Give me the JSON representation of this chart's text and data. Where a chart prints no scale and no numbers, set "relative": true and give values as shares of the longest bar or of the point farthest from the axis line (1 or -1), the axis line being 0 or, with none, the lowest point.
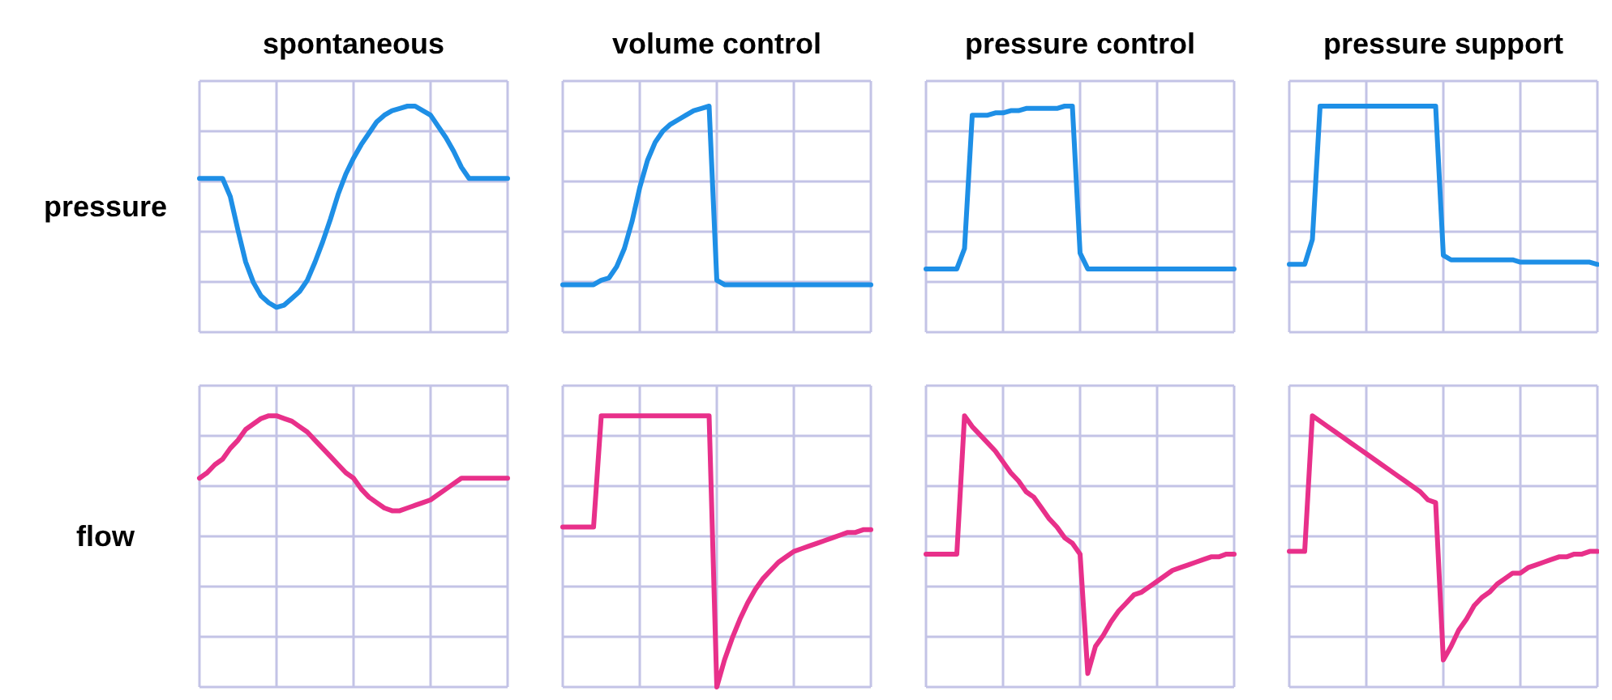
{
  "chart_data": [
    {
      "type": "line",
      "title": "spontaneous",
      "relative": true,
      "grid": true,
      "ylabel": "pressure",
      "categories": [
        null,
        null,
        null,
        null,
        null,
        null,
        null,
        null,
        null,
        null,
        null,
        null,
        null,
        null,
        null,
        null,
        null,
        null,
        null,
        null,
        null,
        null,
        null,
        null,
        null,
        null,
        null,
        null,
        null,
        null,
        null,
        null,
        null,
        null,
        null,
        null,
        null,
        null,
        null,
        null,
        null
      ],
      "series": [
        {
          "color": "#1e8fe6",
          "values": [
            0.68,
            0.68,
            0.68,
            0.68,
            0.6,
            0.45,
            0.31,
            0.22,
            0.16,
            0.13,
            0.11,
            0.12,
            0.15,
            0.18,
            0.23,
            0.31,
            0.4,
            0.5,
            0.61,
            0.7,
            0.77,
            0.83,
            0.88,
            0.93,
            0.96,
            0.98,
            0.99,
            1,
            1,
            0.98,
            0.96,
            0.91,
            0.86,
            0.8,
            0.73,
            0.68,
            0.68,
            0.68,
            0.68,
            0.68,
            0.68
          ]
        }
      ]
    },
    {
      "type": "line",
      "title": "volume control",
      "relative": true,
      "grid": true,
      "categories": [
        null,
        null,
        null,
        null,
        null,
        null,
        null,
        null,
        null,
        null,
        null,
        null,
        null,
        null,
        null,
        null,
        null,
        null,
        null,
        null,
        null,
        null,
        null,
        null,
        null,
        null,
        null,
        null,
        null,
        null,
        null,
        null,
        null,
        null,
        null,
        null,
        null,
        null,
        null,
        null,
        null
      ],
      "series": [
        {
          "color": "#1e8fe6",
          "values": [
            0.21,
            0.21,
            0.21,
            0.21,
            0.21,
            0.23,
            0.24,
            0.29,
            0.37,
            0.49,
            0.64,
            0.76,
            0.84,
            0.89,
            0.92,
            0.94,
            0.96,
            0.98,
            0.99,
            1,
            0.23,
            0.21,
            0.21,
            0.21,
            0.21,
            0.21,
            0.21,
            0.21,
            0.21,
            0.21,
            0.21,
            0.21,
            0.21,
            0.21,
            0.21,
            0.21,
            0.21,
            0.21,
            0.21,
            0.21,
            0.21
          ]
        }
      ]
    },
    {
      "type": "line",
      "title": "pressure control",
      "relative": true,
      "grid": true,
      "categories": [
        null,
        null,
        null,
        null,
        null,
        null,
        null,
        null,
        null,
        null,
        null,
        null,
        null,
        null,
        null,
        null,
        null,
        null,
        null,
        null,
        null,
        null,
        null,
        null,
        null,
        null,
        null,
        null,
        null,
        null,
        null,
        null,
        null,
        null,
        null,
        null,
        null,
        null,
        null,
        null,
        null
      ],
      "series": [
        {
          "color": "#1e8fe6",
          "values": [
            0.28,
            0.28,
            0.28,
            0.28,
            0.28,
            0.37,
            0.96,
            0.96,
            0.96,
            0.97,
            0.97,
            0.98,
            0.98,
            0.99,
            0.99,
            0.99,
            0.99,
            0.99,
            1,
            1,
            0.35,
            0.28,
            0.28,
            0.28,
            0.28,
            0.28,
            0.28,
            0.28,
            0.28,
            0.28,
            0.28,
            0.28,
            0.28,
            0.28,
            0.28,
            0.28,
            0.28,
            0.28,
            0.28,
            0.28,
            0.28
          ]
        }
      ]
    },
    {
      "type": "line",
      "title": "pressure support",
      "relative": true,
      "grid": true,
      "categories": [
        null,
        null,
        null,
        null,
        null,
        null,
        null,
        null,
        null,
        null,
        null,
        null,
        null,
        null,
        null,
        null,
        null,
        null,
        null,
        null,
        null,
        null,
        null,
        null,
        null,
        null,
        null,
        null,
        null,
        null,
        null,
        null,
        null,
        null,
        null,
        null,
        null,
        null,
        null,
        null,
        null
      ],
      "series": [
        {
          "color": "#1e8fe6",
          "values": [
            0.3,
            0.3,
            0.3,
            0.41,
            1,
            1,
            1,
            1,
            1,
            1,
            1,
            1,
            1,
            1,
            1,
            1,
            1,
            1,
            1,
            1,
            0.34,
            0.32,
            0.32,
            0.32,
            0.32,
            0.32,
            0.32,
            0.32,
            0.32,
            0.32,
            0.31,
            0.31,
            0.31,
            0.31,
            0.31,
            0.31,
            0.31,
            0.31,
            0.31,
            0.31,
            0.3
          ]
        }
      ]
    },
    {
      "type": "line",
      "relative": true,
      "grid": true,
      "ylabel": "flow",
      "categories": [
        null,
        null,
        null,
        null,
        null,
        null,
        null,
        null,
        null,
        null,
        null,
        null,
        null,
        null,
        null,
        null,
        null,
        null,
        null,
        null,
        null,
        null,
        null,
        null,
        null,
        null,
        null,
        null,
        null,
        null,
        null,
        null,
        null,
        null,
        null,
        null,
        null,
        null,
        null,
        null,
        null
      ],
      "series": [
        {
          "color": "#e8308a",
          "values": [
            0.77,
            0.79,
            0.82,
            0.84,
            0.88,
            0.91,
            0.95,
            0.97,
            0.99,
            1,
            1,
            0.99,
            0.98,
            0.96,
            0.94,
            0.91,
            0.88,
            0.85,
            0.82,
            0.79,
            0.77,
            0.73,
            0.7,
            0.68,
            0.66,
            0.65,
            0.65,
            0.66,
            0.67,
            0.68,
            0.69,
            0.71,
            0.73,
            0.75,
            0.77,
            0.77,
            0.77,
            0.77,
            0.77,
            0.77,
            0.77
          ]
        }
      ]
    },
    {
      "type": "line",
      "relative": true,
      "grid": true,
      "categories": [
        null,
        null,
        null,
        null,
        null,
        null,
        null,
        null,
        null,
        null,
        null,
        null,
        null,
        null,
        null,
        null,
        null,
        null,
        null,
        null,
        null,
        null,
        null,
        null,
        null,
        null,
        null,
        null,
        null,
        null,
        null,
        null,
        null,
        null,
        null,
        null,
        null,
        null,
        null,
        null,
        null
      ],
      "series": [
        {
          "color": "#e8308a",
          "values": [
            0.59,
            0.59,
            0.59,
            0.59,
            0.59,
            1,
            1,
            1,
            1,
            1,
            1,
            1,
            1,
            1,
            1,
            1,
            1,
            1,
            1,
            1,
            0,
            0.1,
            0.18,
            0.25,
            0.31,
            0.36,
            0.4,
            0.43,
            0.46,
            0.48,
            0.5,
            0.51,
            0.52,
            0.53,
            0.54,
            0.55,
            0.56,
            0.57,
            0.57,
            0.58,
            0.58
          ]
        }
      ]
    },
    {
      "type": "line",
      "relative": true,
      "grid": true,
      "categories": [
        null,
        null,
        null,
        null,
        null,
        null,
        null,
        null,
        null,
        null,
        null,
        null,
        null,
        null,
        null,
        null,
        null,
        null,
        null,
        null,
        null,
        null,
        null,
        null,
        null,
        null,
        null,
        null,
        null,
        null,
        null,
        null,
        null,
        null,
        null,
        null,
        null,
        null,
        null,
        null,
        null
      ],
      "series": [
        {
          "color": "#e8308a",
          "values": [
            0.49,
            0.49,
            0.49,
            0.49,
            0.49,
            1,
            0.96,
            0.93,
            0.9,
            0.87,
            0.83,
            0.79,
            0.76,
            0.72,
            0.7,
            0.66,
            0.62,
            0.59,
            0.55,
            0.53,
            0.49,
            0.05,
            0.15,
            0.19,
            0.24,
            0.28,
            0.31,
            0.34,
            0.35,
            0.37,
            0.39,
            0.41,
            0.43,
            0.44,
            0.45,
            0.46,
            0.47,
            0.48,
            0.48,
            0.49,
            0.49
          ]
        }
      ]
    },
    {
      "type": "line",
      "relative": true,
      "grid": true,
      "categories": [
        null,
        null,
        null,
        null,
        null,
        null,
        null,
        null,
        null,
        null,
        null,
        null,
        null,
        null,
        null,
        null,
        null,
        null,
        null,
        null,
        null,
        null,
        null,
        null,
        null,
        null,
        null,
        null,
        null,
        null,
        null,
        null,
        null,
        null,
        null,
        null,
        null,
        null,
        null,
        null,
        null
      ],
      "series": [
        {
          "color": "#e8308a",
          "values": [
            0.5,
            0.5,
            0.5,
            1,
            0.98,
            0.96,
            0.94,
            0.92,
            0.9,
            0.88,
            0.86,
            0.84,
            0.82,
            0.8,
            0.78,
            0.76,
            0.74,
            0.72,
            0.69,
            0.68,
            0.1,
            0.15,
            0.21,
            0.25,
            0.3,
            0.33,
            0.35,
            0.38,
            0.4,
            0.42,
            0.42,
            0.44,
            0.45,
            0.46,
            0.47,
            0.48,
            0.48,
            0.49,
            0.49,
            0.5,
            0.5
          ]
        }
      ]
    }
  ]
}
